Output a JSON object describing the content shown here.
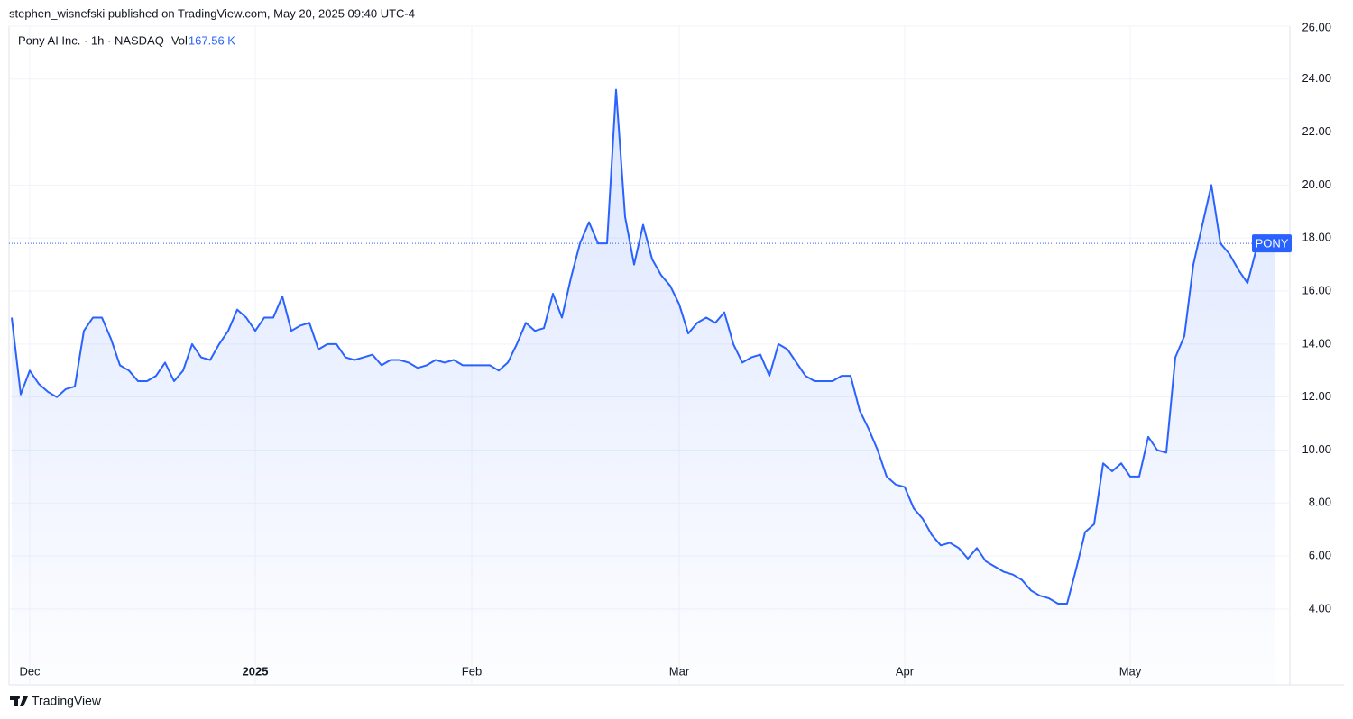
{
  "header": {
    "publisher": "stephen_wisnefski published on TradingView.com, May 20, 2025 09:40 UTC-4"
  },
  "chart_data": {
    "type": "line",
    "title": "Pony AI Inc. · 1h · NASDAQ",
    "volume_label": "Vol",
    "volume": "167.56 K",
    "categories": [
      null,
      null,
      "Dec",
      null,
      null,
      null,
      null,
      null,
      null,
      null,
      null,
      null,
      null,
      null,
      null,
      null,
      null,
      null,
      null,
      null,
      null,
      null,
      null,
      null,
      null,
      null,
      null,
      "2025",
      null,
      null,
      null,
      null,
      null,
      null,
      null,
      null,
      null,
      null,
      null,
      null,
      null,
      null,
      null,
      null,
      null,
      null,
      null,
      null,
      null,
      null,
      null,
      "Feb",
      null,
      null,
      null,
      null,
      null,
      null,
      null,
      null,
      null,
      null,
      null,
      null,
      null,
      null,
      null,
      null,
      null,
      null,
      null,
      null,
      null,
      null,
      "Mar",
      null,
      null,
      null,
      null,
      null,
      null,
      null,
      null,
      null,
      null,
      null,
      null,
      null,
      null,
      null,
      null,
      null,
      null,
      null,
      null,
      null,
      null,
      null,
      null,
      "Apr",
      null,
      null,
      null,
      null,
      null,
      null,
      null,
      null,
      null,
      null,
      null,
      null,
      null,
      null,
      null,
      null,
      null,
      null,
      null,
      null,
      null,
      null,
      null,
      null,
      "May",
      null,
      null,
      null,
      null,
      null,
      null,
      null,
      null,
      null,
      null,
      null,
      null,
      null,
      null,
      null,
      null
    ],
    "series": [
      {
        "name": "PONY",
        "color": "#2962ff",
        "values": [
          15.0,
          12.1,
          13.0,
          12.5,
          12.2,
          12.0,
          12.3,
          12.4,
          14.5,
          15.0,
          15.0,
          14.2,
          13.2,
          13.0,
          12.6,
          12.6,
          12.8,
          13.3,
          12.6,
          13.0,
          14.0,
          13.5,
          13.4,
          14.0,
          14.5,
          15.3,
          15.0,
          14.5,
          15.0,
          15.0,
          15.8,
          14.5,
          14.7,
          14.8,
          13.8,
          14.0,
          14.0,
          13.5,
          13.4,
          13.5,
          13.6,
          13.2,
          13.4,
          13.4,
          13.3,
          13.1,
          13.2,
          13.4,
          13.3,
          13.4,
          13.2,
          13.2,
          13.2,
          13.2,
          13.0,
          13.3,
          14.0,
          14.8,
          14.5,
          14.6,
          15.9,
          15.0,
          16.5,
          17.8,
          18.6,
          17.8,
          17.8,
          23.6,
          18.8,
          17.0,
          18.5,
          17.2,
          16.6,
          16.2,
          15.5,
          14.4,
          14.8,
          15.0,
          14.8,
          15.2,
          14.0,
          13.3,
          13.5,
          13.6,
          12.8,
          14.0,
          13.8,
          13.3,
          12.8,
          12.6,
          12.6,
          12.6,
          12.8,
          12.8,
          11.5,
          10.8,
          10.0,
          9.0,
          8.7,
          8.6,
          7.8,
          7.4,
          6.8,
          6.4,
          6.5,
          6.3,
          5.9,
          6.3,
          5.8,
          5.6,
          5.4,
          5.3,
          5.1,
          4.7,
          4.5,
          4.4,
          4.2,
          4.2,
          5.5,
          6.9,
          7.2,
          9.5,
          9.2,
          9.5,
          9.0,
          9.0,
          10.5,
          10.0,
          9.9,
          13.5,
          14.3,
          17.0,
          18.5,
          20.0,
          17.8,
          17.4,
          16.8,
          16.3,
          17.6,
          17.7,
          17.8
        ]
      }
    ],
    "ylim": [
      1.14,
      26
    ],
    "yticks": [
      {
        "value": 4,
        "label": "4.00"
      },
      {
        "value": 6,
        "label": "6.00"
      },
      {
        "value": 8,
        "label": "8.00"
      },
      {
        "value": 10,
        "label": "10.00"
      },
      {
        "value": 12,
        "label": "12.00"
      },
      {
        "value": 14,
        "label": "14.00"
      },
      {
        "value": 16,
        "label": "16.00"
      },
      {
        "value": 18,
        "label": "18.00"
      },
      {
        "value": 20,
        "label": "20.00"
      },
      {
        "value": 22,
        "label": "22.00"
      },
      {
        "value": 24,
        "label": "24.00"
      },
      {
        "value": 26,
        "label": "26.00"
      }
    ],
    "grid": true
  },
  "footer": {
    "brand": "TradingView"
  }
}
